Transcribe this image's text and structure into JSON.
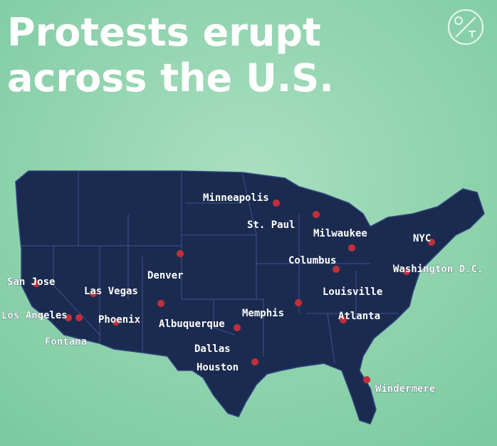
{
  "title": [
    "Protests erupt",
    "across the U.S."
  ],
  "cities": [
    "Minneapolis",
    "St. Paul",
    "Milwaukee",
    "NYC",
    "Columbus",
    "Washington D.C.",
    "San Jose",
    "Denver",
    "Las Vegas",
    "Louisville",
    "Los Angeles",
    "Phoenix",
    "Memphis",
    "Albuquerque",
    "Atlanta",
    "Fontana",
    "Dallas",
    "Houston",
    "Windermere"
  ]
}
